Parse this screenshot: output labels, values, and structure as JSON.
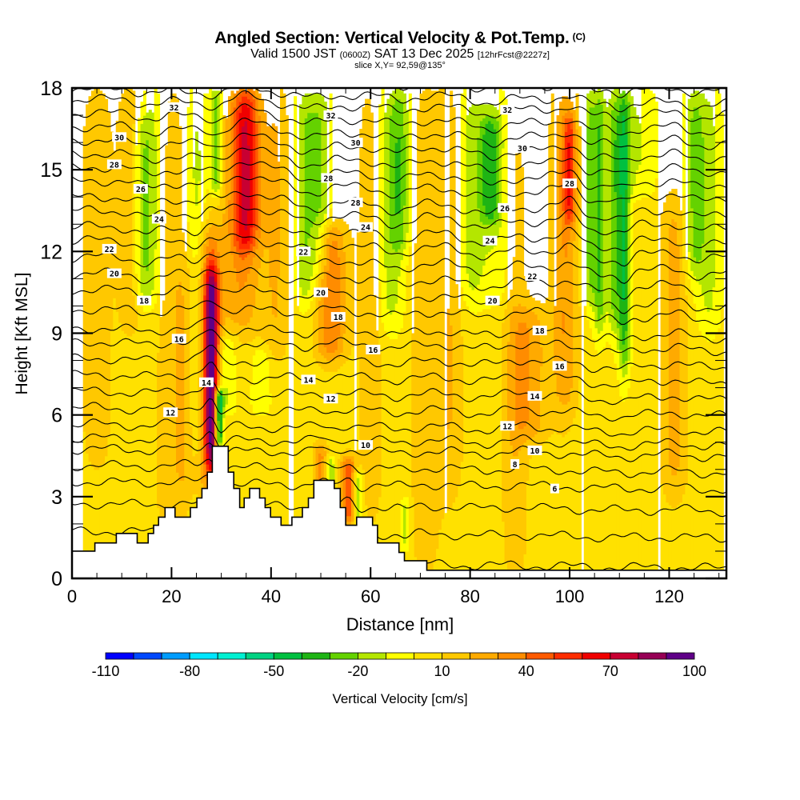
{
  "header": {
    "title": "Angled Section: Vertical Velocity & Pot.Temp.",
    "title_mark": "(C)",
    "valid_prefix": "Valid 1500 JST",
    "valid_utc": "(0600Z)",
    "valid_date": "SAT 13 Dec 2025",
    "forecast": "[12hrFcst@2227z]",
    "slice": "slice X,Y= 92,59@135°"
  },
  "chart_data": {
    "type": "heatmap",
    "title": "Angled Section: Vertical Velocity & Pot.Temp.",
    "xlabel": "Distance [nm]",
    "ylabel": "Height [Kft MSL]",
    "xlim": [
      0,
      131.5
    ],
    "ylim": [
      0,
      18
    ],
    "xticks": [
      0,
      20,
      40,
      60,
      80,
      100,
      120
    ],
    "xtick_labels": [
      "0",
      "20",
      "40",
      "60",
      "80",
      "100",
      "120"
    ],
    "x_minor_step": 5,
    "yticks": [
      0,
      3,
      6,
      9,
      12,
      15,
      18
    ],
    "ytick_labels": [
      "0",
      "3",
      "6",
      "9",
      "12",
      "15",
      "18"
    ],
    "y_minor_step": 1,
    "colorbar": {
      "label": "Vertical Velocity [cm/s]",
      "levels": [
        -110,
        -100,
        -90,
        -80,
        -70,
        -60,
        -50,
        -40,
        -30,
        -20,
        -10,
        0,
        10,
        20,
        30,
        40,
        50,
        60,
        70,
        80,
        90,
        100
      ],
      "tick_values": [
        -110,
        -80,
        -50,
        -20,
        10,
        40,
        70,
        100
      ],
      "tick_labels": [
        "-110",
        "-80",
        "-50",
        "-20",
        "10",
        "40",
        "70",
        "100"
      ],
      "colors": [
        "#0000ff",
        "#0048ff",
        "#009cff",
        "#00e6ff",
        "#00f0d2",
        "#00d282",
        "#00c040",
        "#1eb414",
        "#64d200",
        "#b4e600",
        "#ffff00",
        "#ffe100",
        "#ffc800",
        "#ffaa00",
        "#ff8c00",
        "#ff5a00",
        "#ff2d00",
        "#f00000",
        "#c80032",
        "#960055",
        "#5f0087"
      ]
    },
    "background_velocity": 5,
    "velocity_features": [
      {
        "x": 5,
        "width": 3,
        "z0": 4,
        "z1": 18,
        "w": 12
      },
      {
        "x": 12,
        "width": 2.5,
        "z0": 9,
        "z1": 18,
        "w": 15
      },
      {
        "x": 14,
        "width": 2,
        "z0": 10,
        "z1": 17,
        "w": -20
      },
      {
        "x": 16,
        "width": 2.5,
        "z0": 10,
        "z1": 18,
        "w": -18
      },
      {
        "x": 20,
        "width": 3,
        "z0": 0,
        "z1": 18,
        "w": 12
      },
      {
        "x": 23,
        "width": 2,
        "z0": 3,
        "z1": 12,
        "w": 14
      },
      {
        "x": 25,
        "width": 2.2,
        "z0": 4,
        "z1": 18,
        "w": -18
      },
      {
        "x": 28,
        "width": 1.4,
        "z0": 4,
        "z1": 11.5,
        "w": 72
      },
      {
        "x": 27.5,
        "width": 2.5,
        "z0": 3,
        "z1": 13,
        "w": 30
      },
      {
        "x": 29,
        "width": 1.2,
        "z0": 14,
        "z1": 18,
        "w": -35
      },
      {
        "x": 29.5,
        "width": 0.9,
        "z0": 4.8,
        "z1": 7,
        "w": -75
      },
      {
        "x": 31,
        "width": 2,
        "z0": 6,
        "z1": 9,
        "w": -18
      },
      {
        "x": 35,
        "width": 2.5,
        "z0": 12,
        "z1": 18,
        "w": 45
      },
      {
        "x": 34,
        "width": 4,
        "z0": 9,
        "z1": 18,
        "w": 25
      },
      {
        "x": 38,
        "width": 2,
        "z0": 6,
        "z1": 8.5,
        "w": -15
      },
      {
        "x": 41,
        "width": 2.5,
        "z0": 8,
        "z1": 18,
        "w": 15
      },
      {
        "x": 47,
        "width": 2.2,
        "z0": 10,
        "z1": 18,
        "w": -25
      },
      {
        "x": 50,
        "width": 2,
        "z0": 11,
        "z1": 18,
        "w": -22
      },
      {
        "x": 52,
        "width": 3,
        "z0": 8,
        "z1": 13,
        "w": 35
      },
      {
        "x": 50,
        "width": 1.3,
        "z0": 2.5,
        "z1": 5,
        "w": 28
      },
      {
        "x": 52,
        "width": 1,
        "z0": 3,
        "z1": 4.5,
        "w": -22
      },
      {
        "x": 55.5,
        "width": 1.5,
        "z0": 2,
        "z1": 4.5,
        "w": 42
      },
      {
        "x": 57.5,
        "width": 1,
        "z0": 2,
        "z1": 4,
        "w": -28
      },
      {
        "x": 60,
        "width": 2.5,
        "z0": 2,
        "z1": 18,
        "w": 12
      },
      {
        "x": 64,
        "width": 3,
        "z0": 9,
        "z1": 18,
        "w": -20
      },
      {
        "x": 66,
        "width": 2,
        "z0": 12,
        "z1": 18,
        "w": -22
      },
      {
        "x": 67,
        "width": 1,
        "z0": 1,
        "z1": 3,
        "w": -18
      },
      {
        "x": 71,
        "width": 3,
        "z0": 0,
        "z1": 18,
        "w": 12
      },
      {
        "x": 76,
        "width": 2.5,
        "z0": 3,
        "z1": 18,
        "w": 15
      },
      {
        "x": 80,
        "width": 3,
        "z0": 10,
        "z1": 18,
        "w": -18
      },
      {
        "x": 84,
        "width": 2,
        "z0": 13,
        "z1": 17,
        "w": -30
      },
      {
        "x": 86,
        "width": 4,
        "z0": 10,
        "z1": 18,
        "w": -15
      },
      {
        "x": 89,
        "width": 2.5,
        "z0": 0,
        "z1": 18,
        "w": 14
      },
      {
        "x": 92,
        "width": 3.5,
        "z0": 5,
        "z1": 10,
        "w": 22
      },
      {
        "x": 99,
        "width": 2.5,
        "z0": 6,
        "z1": 18,
        "w": 25
      },
      {
        "x": 100,
        "width": 1.2,
        "z0": 13,
        "z1": 17,
        "w": 35
      },
      {
        "x": 104,
        "width": 1.2,
        "z0": 10,
        "z1": 18,
        "w": -28
      },
      {
        "x": 106,
        "width": 1.2,
        "z0": 9,
        "z1": 18,
        "w": -35
      },
      {
        "x": 109,
        "width": 1.5,
        "z0": 9,
        "z1": 18,
        "w": -30
      },
      {
        "x": 111,
        "width": 1.2,
        "z0": 7.5,
        "z1": 18,
        "w": -40
      },
      {
        "x": 114,
        "width": 3.5,
        "z0": 14,
        "z1": 18,
        "w": -15
      },
      {
        "x": 121,
        "width": 2.5,
        "z0": 3,
        "z1": 14,
        "w": 20
      },
      {
        "x": 125,
        "width": 2,
        "z0": 11,
        "z1": 18,
        "w": -25
      },
      {
        "x": 128,
        "width": 2.5,
        "z0": 9,
        "z1": 18,
        "w": -18
      }
    ],
    "terrain_kft": [
      [
        0,
        1.0
      ],
      [
        4.6,
        1.0
      ],
      [
        4.6,
        1.3
      ],
      [
        8.9,
        1.3
      ],
      [
        8.9,
        1.65
      ],
      [
        13.1,
        1.65
      ],
      [
        13.1,
        1.3
      ],
      [
        15.3,
        1.3
      ],
      [
        15.3,
        1.65
      ],
      [
        16.4,
        1.65
      ],
      [
        16.4,
        1.95
      ],
      [
        17.4,
        1.95
      ],
      [
        17.4,
        2.25
      ],
      [
        18.7,
        2.25
      ],
      [
        18.7,
        2.6
      ],
      [
        20.7,
        2.6
      ],
      [
        20.7,
        2.25
      ],
      [
        23.8,
        2.25
      ],
      [
        23.8,
        2.6
      ],
      [
        25.1,
        2.6
      ],
      [
        25.1,
        2.95
      ],
      [
        26.1,
        2.95
      ],
      [
        26.1,
        3.3
      ],
      [
        27.2,
        3.3
      ],
      [
        27.2,
        3.9
      ],
      [
        28.2,
        3.9
      ],
      [
        28.2,
        4.85
      ],
      [
        31.4,
        4.85
      ],
      [
        31.4,
        3.9
      ],
      [
        32.5,
        3.9
      ],
      [
        32.5,
        3.3
      ],
      [
        33.7,
        3.3
      ],
      [
        33.7,
        2.6
      ],
      [
        34.6,
        2.6
      ],
      [
        34.6,
        2.95
      ],
      [
        35.7,
        2.95
      ],
      [
        35.7,
        3.3
      ],
      [
        37.7,
        3.3
      ],
      [
        37.7,
        2.95
      ],
      [
        38.8,
        2.95
      ],
      [
        38.8,
        2.6
      ],
      [
        39.9,
        2.6
      ],
      [
        39.9,
        2.25
      ],
      [
        42.0,
        2.25
      ],
      [
        42.0,
        1.95
      ],
      [
        44.2,
        1.95
      ],
      [
        44.2,
        2.25
      ],
      [
        46.3,
        2.25
      ],
      [
        46.3,
        2.6
      ],
      [
        47.5,
        2.6
      ],
      [
        47.5,
        2.95
      ],
      [
        48.6,
        2.95
      ],
      [
        48.6,
        3.6
      ],
      [
        52.7,
        3.6
      ],
      [
        52.7,
        3.3
      ],
      [
        53.9,
        3.3
      ],
      [
        53.9,
        2.6
      ],
      [
        55.0,
        2.6
      ],
      [
        55.0,
        1.95
      ],
      [
        57.2,
        1.95
      ],
      [
        57.2,
        2.25
      ],
      [
        60.4,
        2.25
      ],
      [
        60.4,
        1.95
      ],
      [
        61.4,
        1.95
      ],
      [
        61.4,
        1.3
      ],
      [
        65.7,
        1.3
      ],
      [
        65.7,
        0.95
      ],
      [
        66.8,
        0.95
      ],
      [
        66.8,
        0.65
      ],
      [
        71.3,
        0.65
      ],
      [
        71.3,
        0.3
      ],
      [
        131.5,
        0.3
      ]
    ],
    "theta_contours": {
      "levels_c": [
        4,
        5,
        6,
        7,
        8,
        9,
        10,
        11,
        12,
        13,
        14,
        15,
        16,
        17,
        18,
        19,
        20,
        21,
        22,
        23,
        24,
        25,
        26,
        27,
        28,
        29,
        30,
        31,
        32,
        33,
        34
      ],
      "base_height_kft": [
        0.5,
        1.6,
        2.6,
        3.4,
        4.0,
        4.6,
        5.0,
        5.5,
        6.1,
        6.7,
        7.3,
        7.9,
        8.5,
        9.0,
        9.7,
        10.3,
        10.9,
        11.5,
        12.1,
        12.6,
        13.2,
        13.7,
        14.3,
        14.8,
        15.3,
        15.8,
        16.3,
        16.8,
        17.3,
        17.7,
        18.2
      ],
      "labels": [
        {
          "text": "32",
          "x": 20.5,
          "z": 17.3
        },
        {
          "text": "30",
          "x": 9.5,
          "z": 16.2
        },
        {
          "text": "28",
          "x": 8.5,
          "z": 15.2
        },
        {
          "text": "26",
          "x": 13.8,
          "z": 14.3
        },
        {
          "text": "24",
          "x": 17.5,
          "z": 13.2
        },
        {
          "text": "22",
          "x": 7.5,
          "z": 12.1
        },
        {
          "text": "20",
          "x": 8.5,
          "z": 11.2
        },
        {
          "text": "18",
          "x": 14.5,
          "z": 10.2
        },
        {
          "text": "16",
          "x": 21.5,
          "z": 8.8
        },
        {
          "text": "14",
          "x": 27.0,
          "z": 7.2
        },
        {
          "text": "12",
          "x": 19.8,
          "z": 6.1
        },
        {
          "text": "32",
          "x": 52.0,
          "z": 17.0
        },
        {
          "text": "30",
          "x": 57.0,
          "z": 16.0
        },
        {
          "text": "28",
          "x": 51.5,
          "z": 14.7
        },
        {
          "text": "28",
          "x": 57.0,
          "z": 13.8
        },
        {
          "text": "24",
          "x": 59.0,
          "z": 12.9
        },
        {
          "text": "22",
          "x": 46.5,
          "z": 12.0
        },
        {
          "text": "20",
          "x": 50.0,
          "z": 10.5
        },
        {
          "text": "18",
          "x": 53.5,
          "z": 9.6
        },
        {
          "text": "16",
          "x": 60.5,
          "z": 8.4
        },
        {
          "text": "14",
          "x": 47.5,
          "z": 7.3
        },
        {
          "text": "12",
          "x": 52.0,
          "z": 6.6
        },
        {
          "text": "10",
          "x": 59.0,
          "z": 4.9
        },
        {
          "text": "32",
          "x": 87.5,
          "z": 17.2
        },
        {
          "text": "30",
          "x": 90.5,
          "z": 15.8
        },
        {
          "text": "28",
          "x": 100.0,
          "z": 14.5
        },
        {
          "text": "26",
          "x": 87.0,
          "z": 13.6
        },
        {
          "text": "24",
          "x": 84.0,
          "z": 12.4
        },
        {
          "text": "22",
          "x": 92.5,
          "z": 11.1
        },
        {
          "text": "20",
          "x": 84.5,
          "z": 10.2
        },
        {
          "text": "18",
          "x": 94.0,
          "z": 9.1
        },
        {
          "text": "16",
          "x": 98.0,
          "z": 7.8
        },
        {
          "text": "14",
          "x": 93.0,
          "z": 6.7
        },
        {
          "text": "12",
          "x": 87.5,
          "z": 5.6
        },
        {
          "text": "10",
          "x": 93.0,
          "z": 4.7
        },
        {
          "text": "8",
          "x": 89.0,
          "z": 4.2
        },
        {
          "text": "6",
          "x": 97.0,
          "z": 3.3
        }
      ]
    }
  }
}
